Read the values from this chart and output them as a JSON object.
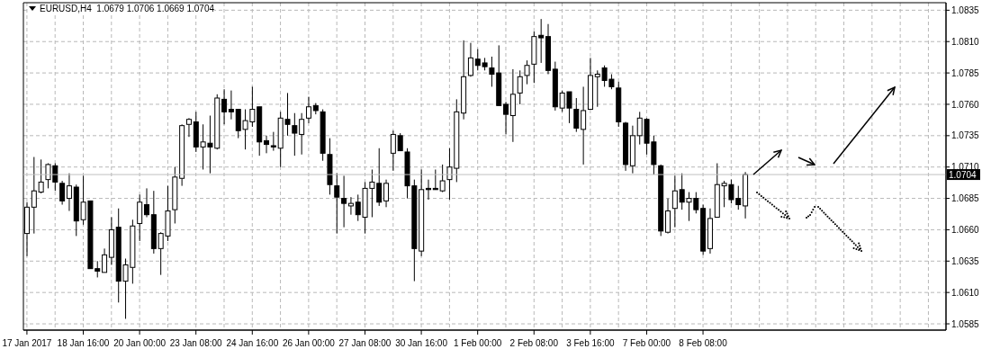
{
  "chart_data": {
    "type": "candlestick",
    "title": "EURUSD,H4  1.0679 1.0706 1.0669 1.0704",
    "color": "#000000",
    "categories": [
      "17 Jan 2017",
      null,
      null,
      null,
      null,
      null,
      null,
      null,
      "18 Jan 16:00",
      null,
      null,
      null,
      null,
      null,
      null,
      null,
      "20 Jan 00:00",
      null,
      null,
      null,
      null,
      null,
      null,
      null,
      "23 Jan 08:00",
      null,
      null,
      null,
      null,
      null,
      null,
      null,
      "24 Jan 16:00",
      null,
      null,
      null,
      null,
      null,
      null,
      null,
      "26 Jan 00:00",
      null,
      null,
      null,
      null,
      null,
      null,
      null,
      "27 Jan 08:00",
      null,
      null,
      null,
      null,
      null,
      null,
      null,
      "30 Jan 16:00",
      null,
      null,
      null,
      null,
      null,
      null,
      null,
      "1 Feb 00:00",
      null,
      null,
      null,
      null,
      null,
      null,
      null,
      "2 Feb 08:00",
      null,
      null,
      null,
      null,
      null,
      null,
      null,
      "3 Feb 16:00",
      null,
      null,
      null,
      null,
      null,
      null,
      null,
      "7 Feb 00:00",
      null,
      null,
      null,
      null,
      null,
      null,
      null,
      "8 Feb 08:00",
      null,
      null,
      null,
      null,
      null,
      null,
      null,
      null,
      null,
      null,
      null,
      null,
      null,
      null,
      null,
      null,
      null,
      null,
      null,
      null,
      null,
      null,
      null,
      null,
      null,
      null,
      null,
      null,
      null,
      null,
      null,
      null,
      null,
      null
    ],
    "ohlc": [
      [
        1.0657,
        1.0682,
        1.0639,
        1.0678
      ],
      [
        1.0678,
        1.0718,
        1.0657,
        1.0691
      ],
      [
        1.069,
        1.0716,
        1.0689,
        1.0698
      ],
      [
        1.07,
        1.0713,
        1.0693,
        1.0712
      ],
      [
        1.0711,
        1.0713,
        1.0691,
        1.0698
      ],
      [
        1.0697,
        1.0699,
        1.068,
        1.0683
      ],
      [
        1.0685,
        1.0705,
        1.0675,
        1.0695
      ],
      [
        1.0694,
        1.0696,
        1.0655,
        1.0667
      ],
      [
        1.0668,
        1.0703,
        1.0664,
        1.0682
      ],
      [
        1.0683,
        1.0683,
        1.0629,
        1.0629
      ],
      [
        1.0629,
        1.0635,
        1.0622,
        1.0627
      ],
      [
        1.0626,
        1.0645,
        1.0626,
        1.064
      ],
      [
        1.0638,
        1.067,
        1.0632,
        1.066
      ],
      [
        1.0662,
        1.0677,
        1.0602,
        1.0619
      ],
      [
        1.0619,
        1.0637,
        1.0589,
        1.0632
      ],
      [
        1.063,
        1.0668,
        1.0617,
        1.0663
      ],
      [
        1.0665,
        1.0688,
        1.0651,
        1.0682
      ],
      [
        1.068,
        1.0693,
        1.067,
        1.0672
      ],
      [
        1.0672,
        1.0691,
        1.0641,
        1.0645
      ],
      [
        1.0645,
        1.0658,
        1.0624,
        1.0657
      ],
      [
        1.0655,
        1.0695,
        1.0651,
        1.0675
      ],
      [
        1.0676,
        1.071,
        1.0665,
        1.0702
      ],
      [
        1.0701,
        1.0744,
        1.0695,
        1.0743
      ],
      [
        1.0744,
        1.0749,
        1.0734,
        1.0748
      ],
      [
        1.0746,
        1.0754,
        1.0722,
        1.0726
      ],
      [
        1.0726,
        1.0744,
        1.0708,
        1.073
      ],
      [
        1.0729,
        1.0751,
        1.0705,
        1.0726
      ],
      [
        1.0725,
        1.0768,
        1.0724,
        1.0765
      ],
      [
        1.0764,
        1.0772,
        1.0744,
        1.0754
      ],
      [
        1.0756,
        1.0771,
        1.0748,
        1.0754
      ],
      [
        1.0756,
        1.0756,
        1.0733,
        1.0739
      ],
      [
        1.074,
        1.0756,
        1.0724,
        1.0747
      ],
      [
        1.0746,
        1.0774,
        1.0742,
        1.0756
      ],
      [
        1.0758,
        1.0758,
        1.0719,
        1.073
      ],
      [
        1.0731,
        1.0735,
        1.0721,
        1.0728
      ],
      [
        1.0727,
        1.0738,
        1.0723,
        1.0726
      ],
      [
        1.0725,
        1.0754,
        1.071,
        1.0749
      ],
      [
        1.0748,
        1.0769,
        1.0735,
        1.0744
      ],
      [
        1.0743,
        1.0753,
        1.0719,
        1.0737
      ],
      [
        1.0736,
        1.0753,
        1.072,
        1.0748
      ],
      [
        1.0749,
        1.0766,
        1.0745,
        1.0758
      ],
      [
        1.0759,
        1.0761,
        1.0752,
        1.0755
      ],
      [
        1.0754,
        1.0756,
        1.0715,
        1.0721
      ],
      [
        1.072,
        1.0733,
        1.0688,
        1.0696
      ],
      [
        1.0695,
        1.0705,
        1.0657,
        1.0686
      ],
      [
        1.0685,
        1.0703,
        1.0662,
        1.0681
      ],
      [
        1.0679,
        1.0686,
        1.0672,
        1.0681
      ],
      [
        1.0682,
        1.0688,
        1.0667,
        1.0672
      ],
      [
        1.067,
        1.0698,
        1.0657,
        1.0693
      ],
      [
        1.0693,
        1.0708,
        1.067,
        1.0698
      ],
      [
        1.0697,
        1.0725,
        1.0679,
        1.0682
      ],
      [
        1.0683,
        1.07,
        1.0678,
        1.0697
      ],
      [
        1.0721,
        1.0739,
        1.0707,
        1.0736
      ],
      [
        1.0735,
        1.0737,
        1.0723,
        1.0723
      ],
      [
        1.0722,
        1.0725,
        1.0685,
        1.0695
      ],
      [
        1.0695,
        1.07,
        1.0619,
        1.0645
      ],
      [
        1.0643,
        1.0708,
        1.0639,
        1.0692
      ],
      [
        1.0693,
        1.07,
        1.0684,
        1.0692
      ],
      [
        1.0693,
        1.0708,
        1.0692,
        1.0692
      ],
      [
        1.0691,
        1.0712,
        1.069,
        1.0699
      ],
      [
        1.07,
        1.0725,
        1.0684,
        1.071
      ],
      [
        1.0709,
        1.0764,
        1.0698,
        1.0754
      ],
      [
        1.0753,
        1.0811,
        1.0748,
        1.0782
      ],
      [
        1.0783,
        1.0809,
        1.0782,
        1.0797
      ],
      [
        1.0796,
        1.0804,
        1.0787,
        1.0791
      ],
      [
        1.0793,
        1.0797,
        1.0787,
        1.079
      ],
      [
        1.0789,
        1.0798,
        1.0774,
        1.0784
      ],
      [
        1.0785,
        1.0807,
        1.0759,
        1.0759
      ],
      [
        1.076,
        1.0762,
        1.0736,
        1.0752
      ],
      [
        1.0751,
        1.0788,
        1.073,
        1.0768
      ],
      [
        1.0769,
        1.0787,
        1.076,
        1.0782
      ],
      [
        1.0783,
        1.0795,
        1.0776,
        1.0791
      ],
      [
        1.0792,
        1.0818,
        1.0777,
        1.0814
      ],
      [
        1.0815,
        1.0828,
        1.0793,
        1.0813
      ],
      [
        1.0814,
        1.0824,
        1.0784,
        1.0787
      ],
      [
        1.0788,
        1.0794,
        1.0755,
        1.0758
      ],
      [
        1.0757,
        1.0771,
        1.0754,
        1.0769
      ],
      [
        1.077,
        1.077,
        1.0745,
        1.0757
      ],
      [
        1.0756,
        1.0765,
        1.0738,
        1.0741
      ],
      [
        1.074,
        1.0774,
        1.0712,
        1.0755
      ],
      [
        1.0756,
        1.0797,
        1.0756,
        1.0783
      ],
      [
        1.0782,
        1.0787,
        1.0758,
        1.0784
      ],
      [
        1.0789,
        1.0791,
        1.0774,
        1.0779
      ],
      [
        1.078,
        1.0784,
        1.0772,
        1.0774
      ],
      [
        1.0773,
        1.0778,
        1.0742,
        1.0746
      ],
      [
        1.0745,
        1.0746,
        1.0707,
        1.0712
      ],
      [
        1.0711,
        1.0743,
        1.0705,
        1.0735
      ],
      [
        1.0735,
        1.0754,
        1.0728,
        1.0749
      ],
      [
        1.0748,
        1.0749,
        1.072,
        1.0729
      ],
      [
        1.073,
        1.0735,
        1.0704,
        1.0712
      ],
      [
        1.0711,
        1.0712,
        1.0655,
        1.0659
      ],
      [
        1.0658,
        1.0685,
        1.0657,
        1.0675
      ],
      [
        1.0677,
        1.0703,
        1.0662,
        1.0691
      ],
      [
        1.0692,
        1.0705,
        1.0676,
        1.0682
      ],
      [
        1.0682,
        1.069,
        1.0667,
        1.0685
      ],
      [
        1.0685,
        1.069,
        1.0673,
        1.0676
      ],
      [
        1.0677,
        1.068,
        1.064,
        1.0643
      ],
      [
        1.0645,
        1.0677,
        1.0641,
        1.0669
      ],
      [
        1.067,
        1.0713,
        1.067,
        1.0696
      ],
      [
        1.0695,
        1.0699,
        1.0678,
        1.0697
      ],
      [
        1.0696,
        1.07,
        1.0681,
        1.0684
      ],
      [
        1.0685,
        1.0695,
        1.0676,
        1.068
      ],
      [
        1.0679,
        1.0706,
        1.0669,
        1.0704
      ],
      null,
      null,
      null,
      null,
      null,
      null,
      null,
      null,
      null,
      null,
      null,
      null,
      null,
      null,
      null,
      null,
      null,
      null,
      null,
      null,
      null,
      null,
      null,
      null,
      null,
      null,
      null,
      null
    ],
    "ylim": [
      1.058,
      1.0841
    ],
    "yticks": [
      {
        "value": 1.0585,
        "label": "1.0585"
      },
      {
        "value": 1.061,
        "label": "1.0610"
      },
      {
        "value": 1.0635,
        "label": "1.0635"
      },
      {
        "value": 1.066,
        "label": "1.0660"
      },
      {
        "value": 1.0685,
        "label": "1.0685"
      },
      {
        "value": 1.071,
        "label": "1.0710"
      },
      {
        "value": 1.0735,
        "label": "1.0735"
      },
      {
        "value": 1.076,
        "label": "1.0760"
      },
      {
        "value": 1.0785,
        "label": "1.0785"
      },
      {
        "value": 1.081,
        "label": "1.0810"
      },
      {
        "value": 1.0835,
        "label": "1.0835"
      }
    ],
    "ref_lines": [
      {
        "axis": "y",
        "value": 1.0704,
        "label": "1.0704",
        "color": "#c0c0c0"
      }
    ],
    "grid": true
  }
}
